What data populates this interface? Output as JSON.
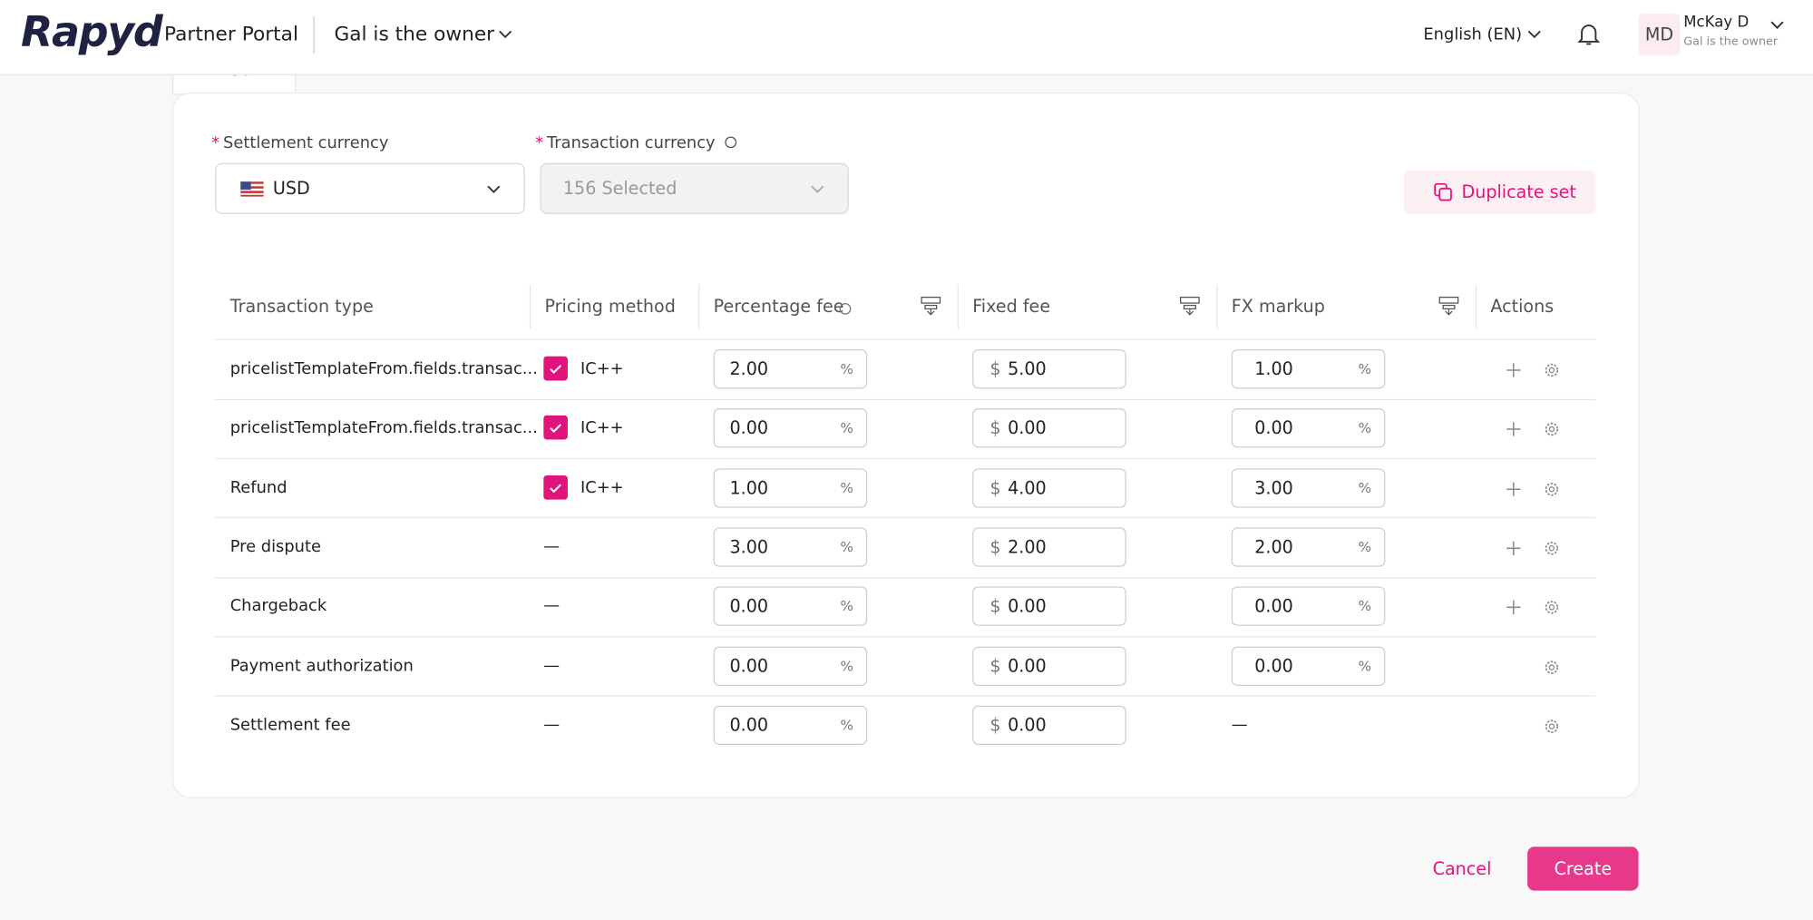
{
  "header": {
    "logo": "Rapyd",
    "portal": "Partner Portal",
    "organization": "Gal is the owner",
    "language": "English (EN)",
    "avatar": "MD",
    "user_name": "McKay D",
    "user_role": "Gal is the owner"
  },
  "tabs": [
    "USD"
  ],
  "form": {
    "settlement_label": "Settlement currency",
    "settlement_value": "USD",
    "transaction_label": "Transaction currency",
    "transaction_value": "156 Selected",
    "required_mark": "*",
    "duplicate_button": "Duplicate set"
  },
  "table": {
    "columns": [
      "Transaction type",
      "Pricing method",
      "Percentage fee",
      "Fixed fee",
      "FX markup",
      "Actions"
    ],
    "percent_unit": "%",
    "currency_symbol": "$",
    "rows": [
      {
        "type": "pricelistTemplateFrom.fields.transac...",
        "method": "IC++",
        "checked": true,
        "percentage": "2.00",
        "fixed": "5.00",
        "fx": "1.00",
        "add": true
      },
      {
        "type": "pricelistTemplateFrom.fields.transac...",
        "method": "IC++",
        "checked": true,
        "percentage": "0.00",
        "fixed": "0.00",
        "fx": "0.00",
        "add": true
      },
      {
        "type": "Refund",
        "method": "IC++",
        "checked": true,
        "percentage": "1.00",
        "fixed": "4.00",
        "fx": "3.00",
        "add": true
      },
      {
        "type": "Pre dispute",
        "method": "—",
        "checked": false,
        "percentage": "3.00",
        "fixed": "2.00",
        "fx": "2.00",
        "add": true
      },
      {
        "type": "Chargeback",
        "method": "—",
        "checked": false,
        "percentage": "0.00",
        "fixed": "0.00",
        "fx": "0.00",
        "add": true
      },
      {
        "type": "Payment authorization",
        "method": "—",
        "checked": false,
        "percentage": "0.00",
        "fixed": "0.00",
        "fx": "0.00",
        "add": false
      },
      {
        "type": "Settlement fee",
        "method": "—",
        "checked": false,
        "percentage": "0.00",
        "fixed": "0.00",
        "fx": "—",
        "add": false
      }
    ]
  },
  "footer": {
    "cancel": "Cancel",
    "create": "Create"
  }
}
